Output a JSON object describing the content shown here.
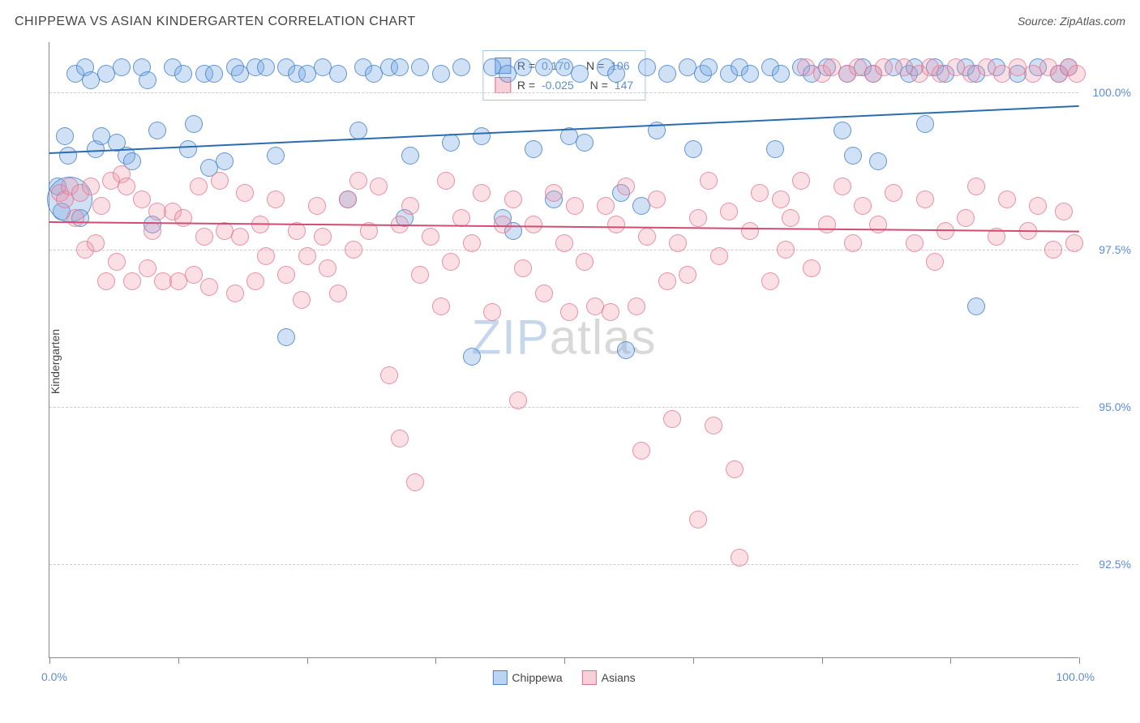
{
  "title": "CHIPPEWA VS ASIAN KINDERGARTEN CORRELATION CHART",
  "source": "Source: ZipAtlas.com",
  "y_axis_label": "Kindergarten",
  "watermark": {
    "prefix": "ZIP",
    "suffix": "atlas"
  },
  "chart": {
    "type": "scatter",
    "background_color": "#ffffff",
    "grid_color": "#cccccc",
    "axis_color": "#888888",
    "text_color": "#444444",
    "value_color": "#5b8dd6",
    "xlim": [
      0,
      100
    ],
    "ylim": [
      91.0,
      100.8
    ],
    "x_ticks": [
      0,
      12.5,
      25,
      37.5,
      50,
      62.5,
      75,
      87.5,
      100
    ],
    "y_ticks": [
      92.5,
      95.0,
      97.5,
      100.0
    ],
    "x_tick_labels": {
      "min": "0.0%",
      "max": "100.0%"
    },
    "y_tick_labels": [
      "92.5%",
      "95.0%",
      "97.5%",
      "100.0%"
    ],
    "point_radius": 11,
    "point_border_width": 1.5,
    "series": [
      {
        "name": "Chippewa",
        "color_fill": "rgba(120,170,230,0.35)",
        "color_stroke": "rgba(70,130,200,0.8)",
        "R": "0.170",
        "N": "106",
        "trend": {
          "y_at_x0": 99.05,
          "y_at_x100": 99.8,
          "color": "#2b6cb0",
          "width": 2
        },
        "points": [
          [
            0.8,
            98.5
          ],
          [
            1.2,
            98.1
          ],
          [
            1.5,
            99.3
          ],
          [
            1.8,
            99.0
          ],
          [
            2.0,
            98.3,
            28
          ],
          [
            2.5,
            100.3
          ],
          [
            3.0,
            98.0
          ],
          [
            3.5,
            100.4
          ],
          [
            4.0,
            100.2
          ],
          [
            4.5,
            99.1
          ],
          [
            5.0,
            99.3
          ],
          [
            5.5,
            100.3
          ],
          [
            6.5,
            99.2
          ],
          [
            7.0,
            100.4
          ],
          [
            7.5,
            99.0
          ],
          [
            8.0,
            98.9
          ],
          [
            9.0,
            100.4
          ],
          [
            9.5,
            100.2
          ],
          [
            10.0,
            97.9
          ],
          [
            10.5,
            99.4
          ],
          [
            12.0,
            100.4
          ],
          [
            13.0,
            100.3
          ],
          [
            13.5,
            99.1
          ],
          [
            14.0,
            99.5
          ],
          [
            15.0,
            100.3
          ],
          [
            15.5,
            98.8
          ],
          [
            16.0,
            100.3
          ],
          [
            17.0,
            98.9
          ],
          [
            18.0,
            100.4
          ],
          [
            18.5,
            100.3
          ],
          [
            20.0,
            100.4
          ],
          [
            21.0,
            100.4
          ],
          [
            22.0,
            99.0
          ],
          [
            23.0,
            96.1
          ],
          [
            23.0,
            100.4
          ],
          [
            24.0,
            100.3
          ],
          [
            25.0,
            100.3
          ],
          [
            26.5,
            100.4
          ],
          [
            28.0,
            100.3
          ],
          [
            29.0,
            98.3
          ],
          [
            30.0,
            99.4
          ],
          [
            30.5,
            100.4
          ],
          [
            31.5,
            100.3
          ],
          [
            33.0,
            100.4
          ],
          [
            34.0,
            100.4
          ],
          [
            34.5,
            98.0
          ],
          [
            35.0,
            99.0
          ],
          [
            36.0,
            100.4
          ],
          [
            38.0,
            100.3
          ],
          [
            39.0,
            99.2
          ],
          [
            40.0,
            100.4
          ],
          [
            41.0,
            95.8
          ],
          [
            42.0,
            99.3
          ],
          [
            43.0,
            100.4
          ],
          [
            44.0,
            98.0
          ],
          [
            44.5,
            100.3
          ],
          [
            45.0,
            97.8
          ],
          [
            46.0,
            100.4
          ],
          [
            47.0,
            99.1
          ],
          [
            48.0,
            100.4
          ],
          [
            49.0,
            98.3
          ],
          [
            50.0,
            100.4
          ],
          [
            50.5,
            99.3
          ],
          [
            51.5,
            100.3
          ],
          [
            52.0,
            99.2
          ],
          [
            54.0,
            100.4
          ],
          [
            55.0,
            100.3
          ],
          [
            55.5,
            98.4
          ],
          [
            56.0,
            95.9
          ],
          [
            57.5,
            98.2
          ],
          [
            58.0,
            100.4
          ],
          [
            59.0,
            99.4
          ],
          [
            60.0,
            100.3
          ],
          [
            62.0,
            100.4
          ],
          [
            62.5,
            99.1
          ],
          [
            63.5,
            100.3
          ],
          [
            64.0,
            100.4
          ],
          [
            66.0,
            100.3
          ],
          [
            67.0,
            100.4
          ],
          [
            68.0,
            100.3
          ],
          [
            70.0,
            100.4
          ],
          [
            70.5,
            99.1
          ],
          [
            71.0,
            100.3
          ],
          [
            73.0,
            100.4
          ],
          [
            74.0,
            100.3
          ],
          [
            75.5,
            100.4
          ],
          [
            77.0,
            99.4
          ],
          [
            77.5,
            100.3
          ],
          [
            78.0,
            99.0
          ],
          [
            79.0,
            100.4
          ],
          [
            80.0,
            100.3
          ],
          [
            80.5,
            98.9
          ],
          [
            82.0,
            100.4
          ],
          [
            83.5,
            100.3
          ],
          [
            84.0,
            100.4
          ],
          [
            85.0,
            99.5
          ],
          [
            86.0,
            100.4
          ],
          [
            87.0,
            100.3
          ],
          [
            89.0,
            100.4
          ],
          [
            90.0,
            96.6
          ],
          [
            90.0,
            100.3
          ],
          [
            92.0,
            100.4
          ],
          [
            94.0,
            100.3
          ],
          [
            96.0,
            100.4
          ],
          [
            98.0,
            100.3
          ],
          [
            99.0,
            100.4
          ]
        ]
      },
      {
        "name": "Asians",
        "color_fill": "rgba(240,150,170,0.30)",
        "color_stroke": "rgba(225,110,140,0.7)",
        "R": "-0.025",
        "N": "147",
        "trend": {
          "y_at_x0": 97.95,
          "y_at_x100": 97.8,
          "color": "#d14d72",
          "width": 2
        },
        "points": [
          [
            1.0,
            98.4
          ],
          [
            1.5,
            98.3
          ],
          [
            2.0,
            98.5
          ],
          [
            2.5,
            98.0
          ],
          [
            3.0,
            98.4
          ],
          [
            3.5,
            97.5
          ],
          [
            4.0,
            98.5
          ],
          [
            4.5,
            97.6
          ],
          [
            5.0,
            98.2
          ],
          [
            5.5,
            97.0
          ],
          [
            6.0,
            98.6
          ],
          [
            6.5,
            97.3
          ],
          [
            7.0,
            98.7
          ],
          [
            7.5,
            98.5
          ],
          [
            8.0,
            97.0
          ],
          [
            9.0,
            98.3
          ],
          [
            9.5,
            97.2
          ],
          [
            10.0,
            97.8
          ],
          [
            10.5,
            98.1
          ],
          [
            11.0,
            97.0
          ],
          [
            12.0,
            98.1
          ],
          [
            12.5,
            97.0
          ],
          [
            13.0,
            98.0
          ],
          [
            14.0,
            97.1
          ],
          [
            14.5,
            98.5
          ],
          [
            15.0,
            97.7
          ],
          [
            15.5,
            96.9
          ],
          [
            16.5,
            98.6
          ],
          [
            17.0,
            97.8
          ],
          [
            18.0,
            96.8
          ],
          [
            18.5,
            97.7
          ],
          [
            19.0,
            98.4
          ],
          [
            20.0,
            97.0
          ],
          [
            20.5,
            97.9
          ],
          [
            21.0,
            97.4
          ],
          [
            22.0,
            98.3
          ],
          [
            23.0,
            97.1
          ],
          [
            24.0,
            97.8
          ],
          [
            24.5,
            96.7
          ],
          [
            25.0,
            97.4
          ],
          [
            26.0,
            98.2
          ],
          [
            26.5,
            97.7
          ],
          [
            27.0,
            97.2
          ],
          [
            28.0,
            96.8
          ],
          [
            29.0,
            98.3
          ],
          [
            29.5,
            97.5
          ],
          [
            30.0,
            98.6
          ],
          [
            31.0,
            97.8
          ],
          [
            32.0,
            98.5
          ],
          [
            33.0,
            95.5
          ],
          [
            34.0,
            94.5
          ],
          [
            34.0,
            97.9
          ],
          [
            35.0,
            98.2
          ],
          [
            35.5,
            93.8
          ],
          [
            36.0,
            97.1
          ],
          [
            37.0,
            97.7
          ],
          [
            38.0,
            96.6
          ],
          [
            38.5,
            98.6
          ],
          [
            39.0,
            97.3
          ],
          [
            40.0,
            98.0
          ],
          [
            41.0,
            97.6
          ],
          [
            42.0,
            98.4
          ],
          [
            43.0,
            96.5
          ],
          [
            44.0,
            97.9
          ],
          [
            45.0,
            98.3
          ],
          [
            45.5,
            95.1
          ],
          [
            46.0,
            97.2
          ],
          [
            47.0,
            97.9
          ],
          [
            48.0,
            96.8
          ],
          [
            49.0,
            98.4
          ],
          [
            50.0,
            97.6
          ],
          [
            50.5,
            96.5
          ],
          [
            51.0,
            98.2
          ],
          [
            52.0,
            97.3
          ],
          [
            53.0,
            96.6
          ],
          [
            54.0,
            98.2
          ],
          [
            54.5,
            96.5
          ],
          [
            55.0,
            97.9
          ],
          [
            56.0,
            98.5
          ],
          [
            57.0,
            96.6
          ],
          [
            57.5,
            94.3
          ],
          [
            58.0,
            97.7
          ],
          [
            59.0,
            98.3
          ],
          [
            60.0,
            97.0
          ],
          [
            60.5,
            94.8
          ],
          [
            61.0,
            97.6
          ],
          [
            62.0,
            97.1
          ],
          [
            63.0,
            93.2
          ],
          [
            63.0,
            98.0
          ],
          [
            64.0,
            98.6
          ],
          [
            64.5,
            94.7
          ],
          [
            65.0,
            97.4
          ],
          [
            66.0,
            98.1
          ],
          [
            66.5,
            94.0
          ],
          [
            67.0,
            92.6
          ],
          [
            68.0,
            97.8
          ],
          [
            69.0,
            98.4
          ],
          [
            70.0,
            97.0
          ],
          [
            71.0,
            98.3
          ],
          [
            71.5,
            97.5
          ],
          [
            72.0,
            98.0
          ],
          [
            73.0,
            98.6
          ],
          [
            73.5,
            100.4
          ],
          [
            74.0,
            97.2
          ],
          [
            75.0,
            100.3
          ],
          [
            75.5,
            97.9
          ],
          [
            76.0,
            100.4
          ],
          [
            77.0,
            98.5
          ],
          [
            77.5,
            100.3
          ],
          [
            78.0,
            97.6
          ],
          [
            78.5,
            100.4
          ],
          [
            79.0,
            98.2
          ],
          [
            80.0,
            100.3
          ],
          [
            80.5,
            97.9
          ],
          [
            81.0,
            100.4
          ],
          [
            82.0,
            98.4
          ],
          [
            83.0,
            100.4
          ],
          [
            84.0,
            97.6
          ],
          [
            84.5,
            100.3
          ],
          [
            85.0,
            98.3
          ],
          [
            85.5,
            100.4
          ],
          [
            86.0,
            97.3
          ],
          [
            86.5,
            100.3
          ],
          [
            87.0,
            97.8
          ],
          [
            88.0,
            100.4
          ],
          [
            89.0,
            98.0
          ],
          [
            89.5,
            100.3
          ],
          [
            90.0,
            98.5
          ],
          [
            91.0,
            100.4
          ],
          [
            92.0,
            97.7
          ],
          [
            92.5,
            100.3
          ],
          [
            93.0,
            98.3
          ],
          [
            94.0,
            100.4
          ],
          [
            95.0,
            97.8
          ],
          [
            95.5,
            100.3
          ],
          [
            96.0,
            98.2
          ],
          [
            97.0,
            100.4
          ],
          [
            97.5,
            97.5
          ],
          [
            98.0,
            100.3
          ],
          [
            98.5,
            98.1
          ],
          [
            99.0,
            100.4
          ],
          [
            99.5,
            97.6
          ],
          [
            99.8,
            100.3
          ]
        ]
      }
    ]
  },
  "legend_labels": {
    "r_prefix": "R =",
    "n_prefix": "N ="
  },
  "bottom_legend": [
    {
      "label": "Chippewa",
      "swatch": "a"
    },
    {
      "label": "Asians",
      "swatch": "b"
    }
  ]
}
